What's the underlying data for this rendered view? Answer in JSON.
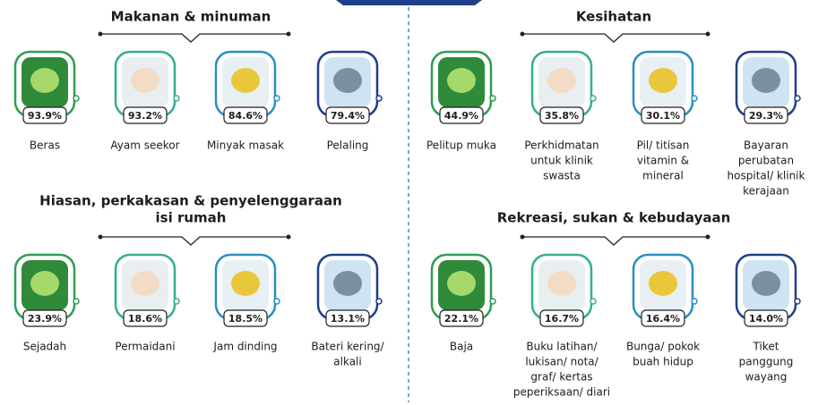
{
  "sections": [
    {
      "title_lines": [
        "Makanan & minuman"
      ],
      "items": [
        {
          "percent": "93.9%",
          "label_lines": [
            "Beras"
          ]
        },
        {
          "percent": "93.2%",
          "label_lines": [
            "Ayam seekor"
          ]
        },
        {
          "percent": "84.6%",
          "label_lines": [
            "Minyak masak"
          ]
        },
        {
          "percent": "79.4%",
          "label_lines": [
            "Pelaling"
          ]
        }
      ]
    },
    {
      "title_lines": [
        "Kesihatan"
      ],
      "items": [
        {
          "percent": "44.9%",
          "label_lines": [
            "Pelitup muka"
          ]
        },
        {
          "percent": "35.8%",
          "label_lines": [
            "Perkhidmatan",
            "untuk klinik",
            "swasta"
          ]
        },
        {
          "percent": "30.1%",
          "label_lines": [
            "Pil/ titisan",
            "vitamin &",
            "mineral"
          ]
        },
        {
          "percent": "29.3%",
          "label_lines": [
            "Bayaran",
            "perubatan",
            "hospital/ klinik",
            "kerajaan"
          ]
        }
      ]
    },
    {
      "title_lines": [
        "Hiasan, perkakasan & penyelenggaraan",
        "isi rumah"
      ],
      "items": [
        {
          "percent": "23.9%",
          "label_lines": [
            "Sejadah"
          ]
        },
        {
          "percent": "18.6%",
          "label_lines": [
            "Permaidani"
          ]
        },
        {
          "percent": "18.5%",
          "label_lines": [
            "Jam dinding"
          ]
        },
        {
          "percent": "13.1%",
          "label_lines": [
            "Bateri kering/",
            "alkali"
          ]
        }
      ]
    },
    {
      "title_lines": [
        "Rekreasi, sukan & kebudayaan"
      ],
      "items": [
        {
          "percent": "22.1%",
          "label_lines": [
            "Baja"
          ]
        },
        {
          "percent": "16.7%",
          "label_lines": [
            "Buku latihan/",
            "lukisan/ nota/",
            "graf/ kertas",
            "peperiksaan/ diari"
          ]
        },
        {
          "percent": "16.4%",
          "label_lines": [
            "Bunga/ pokok",
            "buah hidup"
          ]
        },
        {
          "percent": "14.0%",
          "label_lines": [
            "Tiket",
            "panggung",
            "wayang"
          ]
        }
      ]
    }
  ]
}
